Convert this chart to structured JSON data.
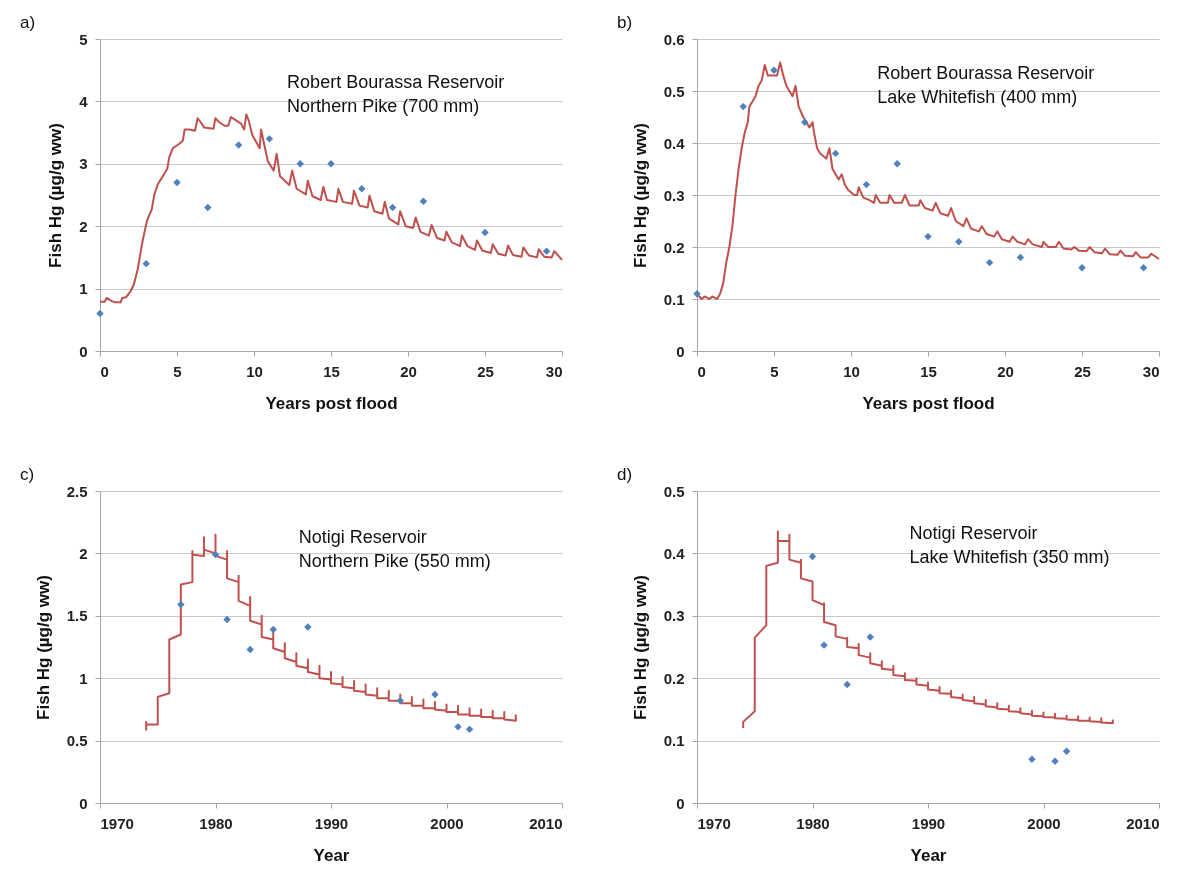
{
  "chart_data": [
    {
      "type": "line",
      "xlabel": "Years post flood",
      "ylabel": "Fish Hg (µg/g ww)",
      "annotations": [
        "a)",
        "Robert Bourassa Reservoir",
        "Northern Pike (700 mm)"
      ],
      "xlim": [
        0,
        30
      ],
      "xticks": [
        0,
        5,
        10,
        15,
        20,
        25,
        30
      ],
      "ylim": [
        0,
        5
      ],
      "yticks": [
        0,
        1,
        2,
        3,
        4,
        5
      ],
      "grid": "y",
      "series": [
        {
          "marker": "none",
          "color": "#c0504d",
          "x": [
            0,
            0.3,
            0.43,
            0.77,
            1.0,
            1.34,
            1.44,
            1.68,
            1.97,
            2.2,
            2.45,
            2.74,
            3.05,
            3.36,
            3.53,
            3.77,
            4.08,
            4.37,
            4.49,
            4.73,
            5.09,
            5.38,
            5.5,
            5.81,
            6.17,
            6.34,
            6.53,
            6.77,
            7.37,
            7.49,
            7.73,
            8.09,
            8.33,
            8.5,
            8.81,
            9.17,
            9.36,
            9.5,
            9.65,
            9.89,
            10.37,
            10.46,
            10.61,
            10.9,
            11.28,
            11.47,
            11.69,
            12.29,
            12.48,
            12.77,
            13.37,
            13.49,
            13.8,
            14.33,
            14.5,
            14.74,
            15.36,
            15.48,
            15.77,
            16.37,
            16.49,
            16.85,
            17.38,
            17.5,
            17.81,
            18.34,
            18.49,
            18.77,
            19.37,
            19.49,
            19.85,
            20.33,
            20.5,
            20.81,
            21.36,
            21.53,
            21.89,
            22.37,
            22.49,
            22.85,
            23.38,
            23.5,
            23.86,
            24.34,
            24.48,
            24.82,
            25.38,
            25.5,
            25.86,
            26.34,
            26.5,
            26.81,
            27.37,
            27.49,
            27.85,
            28.37,
            28.49,
            28.85,
            29.33,
            29.5,
            30
          ],
          "values": [
            0.79,
            0.79,
            0.85,
            0.8,
            0.78,
            0.78,
            0.85,
            0.86,
            0.95,
            1.07,
            1.31,
            1.73,
            2.09,
            2.27,
            2.51,
            2.68,
            2.8,
            2.92,
            3.1,
            3.25,
            3.31,
            3.37,
            3.55,
            3.55,
            3.53,
            3.73,
            3.67,
            3.58,
            3.56,
            3.73,
            3.67,
            3.61,
            3.61,
            3.75,
            3.7,
            3.64,
            3.55,
            3.79,
            3.7,
            3.46,
            3.25,
            3.55,
            3.37,
            3.04,
            2.89,
            3.16,
            2.8,
            2.66,
            2.89,
            2.6,
            2.51,
            2.73,
            2.48,
            2.42,
            2.63,
            2.42,
            2.39,
            2.6,
            2.39,
            2.36,
            2.57,
            2.33,
            2.3,
            2.49,
            2.24,
            2.2,
            2.39,
            2.12,
            2.03,
            2.24,
            2.0,
            1.97,
            2.14,
            1.91,
            1.85,
            2.02,
            1.81,
            1.77,
            1.91,
            1.74,
            1.68,
            1.85,
            1.68,
            1.62,
            1.77,
            1.61,
            1.57,
            1.71,
            1.56,
            1.53,
            1.69,
            1.54,
            1.51,
            1.66,
            1.53,
            1.5,
            1.63,
            1.51,
            1.5,
            1.6,
            1.46
          ]
        },
        {
          "type": "scatter",
          "marker": "diamond",
          "color": "#4f81bd",
          "x": [
            0,
            3,
            5,
            7,
            9,
            11,
            13,
            15,
            17,
            19,
            21,
            25,
            29
          ],
          "values": [
            0.6,
            1.4,
            2.7,
            2.3,
            3.3,
            3.4,
            3.0,
            3.0,
            2.6,
            2.3,
            2.4,
            1.9,
            1.6
          ]
        }
      ]
    },
    {
      "type": "line",
      "xlabel": "Years post flood",
      "ylabel": "Fish Hg (µg/g ww)",
      "annotations": [
        "b)",
        "Robert Bourassa Reservoir",
        "Lake Whitefish (400 mm)"
      ],
      "xlim": [
        0,
        30
      ],
      "xticks": [
        0,
        5,
        10,
        15,
        20,
        25,
        30
      ],
      "ylim": [
        0,
        0.6
      ],
      "yticks": [
        0,
        0.1,
        0.2,
        0.3,
        0.4,
        0.5,
        0.6
      ],
      "grid": "y",
      "series": [
        {
          "marker": "none",
          "color": "#c0504d",
          "x": [
            0,
            0.3,
            0.5,
            0.8,
            1.0,
            1.3,
            1.5,
            1.6,
            1.7,
            1.9,
            2.1,
            2.3,
            2.5,
            2.7,
            2.9,
            3.1,
            3.3,
            3.4,
            3.6,
            3.8,
            4.0,
            4.2,
            4.4,
            4.5,
            4.6,
            4.8,
            5.0,
            5.2,
            5.4,
            5.6,
            5.8,
            6.0,
            6.2,
            6.4,
            6.6,
            6.9,
            7.1,
            7.3,
            7.5,
            7.6,
            7.8,
            8.0,
            8.4,
            8.6,
            8.8,
            9.2,
            9.4,
            9.6,
            9.8,
            10.2,
            10.4,
            10.5,
            10.8,
            11.2,
            11.5,
            11.6,
            11.9,
            12.4,
            12.5,
            12.8,
            13.3,
            13.5,
            13.8,
            14.4,
            14.5,
            14.8,
            15.3,
            15.5,
            15.8,
            16.3,
            16.5,
            16.8,
            17.3,
            17.5,
            17.8,
            18.3,
            18.5,
            18.8,
            19.3,
            19.5,
            19.8,
            20.3,
            20.5,
            20.8,
            21.3,
            21.5,
            21.8,
            22.4,
            22.5,
            22.8,
            23.3,
            23.5,
            23.8,
            24.3,
            24.5,
            24.8,
            25.3,
            25.5,
            25.8,
            26.3,
            26.5,
            26.8,
            27.3,
            27.5,
            27.8,
            28.3,
            28.5,
            28.8,
            29.3,
            29.5,
            30
          ],
          "values": [
            0.11,
            0.1,
            0.105,
            0.1,
            0.105,
            0.1,
            0.11,
            0.12,
            0.13,
            0.17,
            0.2,
            0.24,
            0.3,
            0.35,
            0.39,
            0.42,
            0.44,
            0.47,
            0.48,
            0.49,
            0.51,
            0.52,
            0.55,
            0.54,
            0.53,
            0.53,
            0.53,
            0.53,
            0.555,
            0.53,
            0.51,
            0.5,
            0.49,
            0.51,
            0.47,
            0.45,
            0.44,
            0.43,
            0.44,
            0.42,
            0.39,
            0.38,
            0.37,
            0.39,
            0.35,
            0.33,
            0.34,
            0.32,
            0.31,
            0.3,
            0.3,
            0.315,
            0.295,
            0.29,
            0.285,
            0.3,
            0.285,
            0.285,
            0.3,
            0.285,
            0.285,
            0.3,
            0.28,
            0.28,
            0.29,
            0.275,
            0.27,
            0.285,
            0.265,
            0.26,
            0.275,
            0.25,
            0.24,
            0.255,
            0.235,
            0.23,
            0.24,
            0.225,
            0.22,
            0.23,
            0.215,
            0.21,
            0.22,
            0.21,
            0.205,
            0.215,
            0.205,
            0.2,
            0.21,
            0.2,
            0.2,
            0.21,
            0.197,
            0.195,
            0.2,
            0.193,
            0.192,
            0.2,
            0.19,
            0.188,
            0.197,
            0.186,
            0.185,
            0.193,
            0.183,
            0.182,
            0.19,
            0.18,
            0.18,
            0.187,
            0.177
          ]
        },
        {
          "type": "scatter",
          "marker": "diamond",
          "color": "#4f81bd",
          "x": [
            0,
            3,
            5,
            7,
            9,
            11,
            13,
            15,
            17,
            19,
            21,
            25,
            29
          ],
          "values": [
            0.11,
            0.47,
            0.54,
            0.44,
            0.38,
            0.32,
            0.36,
            0.22,
            0.21,
            0.17,
            0.18,
            0.16,
            0.16
          ]
        }
      ]
    },
    {
      "type": "line",
      "xlabel": "Year",
      "ylabel": "Fish Hg (µg/g ww)",
      "annotations": [
        "c)",
        "Notigi Reservoir",
        "Northern Pike (550 mm)"
      ],
      "xlim": [
        1970,
        2010
      ],
      "xticks": [
        1970,
        1980,
        1990,
        2000,
        2010
      ],
      "ylim": [
        0,
        2.5
      ],
      "yticks": [
        0,
        0.5,
        1,
        1.5,
        2,
        2.5
      ],
      "grid": "y",
      "series": [
        {
          "marker": "none",
          "color": "#c0504d",
          "x": [
            1974,
            1974,
            1974,
            1975,
            1975,
            1976,
            1976,
            1977,
            1977,
            1978,
            1978,
            1978,
            1979,
            1979,
            1979,
            1980,
            1980,
            1980,
            1981,
            1981,
            1981,
            1982,
            1982,
            1982,
            1983,
            1983,
            1983,
            1984,
            1984,
            1984,
            1985,
            1985,
            1985,
            1986,
            1986,
            1986,
            1987,
            1987,
            1987,
            1988,
            1988,
            1988,
            1989,
            1989,
            1989,
            1990,
            1990,
            1990,
            1991,
            1991,
            1991,
            1992,
            1992,
            1992,
            1993,
            1993,
            1993,
            1994,
            1994,
            1994,
            1995,
            1995,
            1995,
            1996,
            1996,
            1996,
            1997,
            1997,
            1997,
            1998,
            1998,
            1998,
            1999,
            1999,
            1999,
            2000,
            2000,
            2000,
            2001,
            2001,
            2001,
            2002,
            2002,
            2002,
            2003,
            2003,
            2003,
            2004,
            2004,
            2004,
            2005,
            2005,
            2005,
            2006,
            2006
          ],
          "values": [
            0.58,
            0.65,
            0.63,
            0.63,
            0.85,
            0.88,
            1.31,
            1.35,
            1.75,
            1.77,
            2.02,
            1.99,
            1.98,
            2.13,
            2.03,
            2.0,
            2.15,
            1.98,
            1.95,
            2.02,
            1.8,
            1.77,
            1.82,
            1.62,
            1.58,
            1.65,
            1.46,
            1.43,
            1.5,
            1.33,
            1.31,
            1.39,
            1.24,
            1.21,
            1.28,
            1.16,
            1.13,
            1.2,
            1.1,
            1.08,
            1.15,
            1.05,
            1.03,
            1.1,
            1.0,
            0.99,
            1.05,
            0.96,
            0.95,
            1.01,
            0.93,
            0.92,
            0.98,
            0.9,
            0.89,
            0.95,
            0.87,
            0.86,
            0.92,
            0.84,
            0.84,
            0.9,
            0.82,
            0.82,
            0.87,
            0.8,
            0.8,
            0.85,
            0.78,
            0.78,
            0.83,
            0.76,
            0.76,
            0.81,
            0.75,
            0.74,
            0.79,
            0.73,
            0.73,
            0.78,
            0.71,
            0.71,
            0.76,
            0.7,
            0.7,
            0.75,
            0.69,
            0.69,
            0.74,
            0.68,
            0.68,
            0.73,
            0.67,
            0.66,
            0.71
          ]
        },
        {
          "type": "scatter",
          "marker": "diamond",
          "color": "#4f81bd",
          "x": [
            1977,
            1980,
            1981,
            1983,
            1985,
            1988,
            1996,
            1999,
            2001,
            2002
          ],
          "values": [
            1.59,
            1.99,
            1.47,
            1.23,
            1.39,
            1.41,
            0.82,
            0.87,
            0.61,
            0.59
          ]
        }
      ]
    },
    {
      "type": "line",
      "xlabel": "Year",
      "ylabel": "Fish Hg (µg/g ww)",
      "annotations": [
        "d)",
        "Notigi Reservoir",
        "Lake Whitefish (350 mm)"
      ],
      "xlim": [
        1970,
        2010
      ],
      "xticks": [
        1970,
        1980,
        1990,
        2000,
        2010
      ],
      "ylim": [
        0,
        0.5
      ],
      "yticks": [
        0,
        0.1,
        0.2,
        0.3,
        0.4,
        0.5
      ],
      "grid": "y",
      "series": [
        {
          "marker": "none",
          "color": "#c0504d",
          "x": [
            1974,
            1974,
            1975,
            1975,
            1976,
            1976,
            1977,
            1977,
            1977,
            1978,
            1978,
            1978,
            1979,
            1979,
            1979,
            1980,
            1980,
            1980,
            1981,
            1981,
            1981,
            1982,
            1982,
            1982,
            1983,
            1983,
            1983,
            1984,
            1984,
            1984,
            1985,
            1985,
            1985,
            1986,
            1986,
            1986,
            1987,
            1987,
            1987,
            1988,
            1988,
            1988,
            1989,
            1989,
            1989,
            1990,
            1990,
            1990,
            1991,
            1991,
            1991,
            1992,
            1992,
            1992,
            1993,
            1993,
            1993,
            1994,
            1994,
            1994,
            1995,
            1995,
            1995,
            1996,
            1996,
            1996,
            1997,
            1997,
            1997,
            1998,
            1998,
            1998,
            1999,
            1999,
            1999,
            2000,
            2000,
            2000,
            2001,
            2001,
            2001,
            2002,
            2002,
            2002,
            2003,
            2003,
            2003,
            2004,
            2004,
            2004,
            2005,
            2005,
            2005,
            2006,
            2006
          ],
          "values": [
            0.12,
            0.13,
            0.147,
            0.265,
            0.285,
            0.38,
            0.385,
            0.435,
            0.42,
            0.42,
            0.43,
            0.39,
            0.385,
            0.39,
            0.36,
            0.355,
            0.355,
            0.325,
            0.317,
            0.32,
            0.29,
            0.285,
            0.285,
            0.267,
            0.263,
            0.265,
            0.25,
            0.248,
            0.255,
            0.237,
            0.233,
            0.24,
            0.224,
            0.22,
            0.227,
            0.215,
            0.213,
            0.22,
            0.205,
            0.203,
            0.208,
            0.197,
            0.196,
            0.2,
            0.19,
            0.188,
            0.193,
            0.182,
            0.18,
            0.186,
            0.176,
            0.175,
            0.18,
            0.17,
            0.168,
            0.174,
            0.165,
            0.163,
            0.17,
            0.16,
            0.158,
            0.165,
            0.155,
            0.153,
            0.16,
            0.151,
            0.15,
            0.156,
            0.147,
            0.146,
            0.152,
            0.144,
            0.142,
            0.148,
            0.14,
            0.139,
            0.145,
            0.138,
            0.137,
            0.143,
            0.136,
            0.135,
            0.14,
            0.134,
            0.133,
            0.139,
            0.132,
            0.132,
            0.137,
            0.131,
            0.13,
            0.136,
            0.129,
            0.128,
            0.134
          ]
        },
        {
          "type": "scatter",
          "marker": "diamond",
          "color": "#4f81bd",
          "x": [
            1980,
            1981,
            1983,
            1985,
            1999,
            2001,
            2002
          ],
          "values": [
            0.395,
            0.253,
            0.19,
            0.266,
            0.07,
            0.067,
            0.083
          ]
        }
      ]
    }
  ]
}
